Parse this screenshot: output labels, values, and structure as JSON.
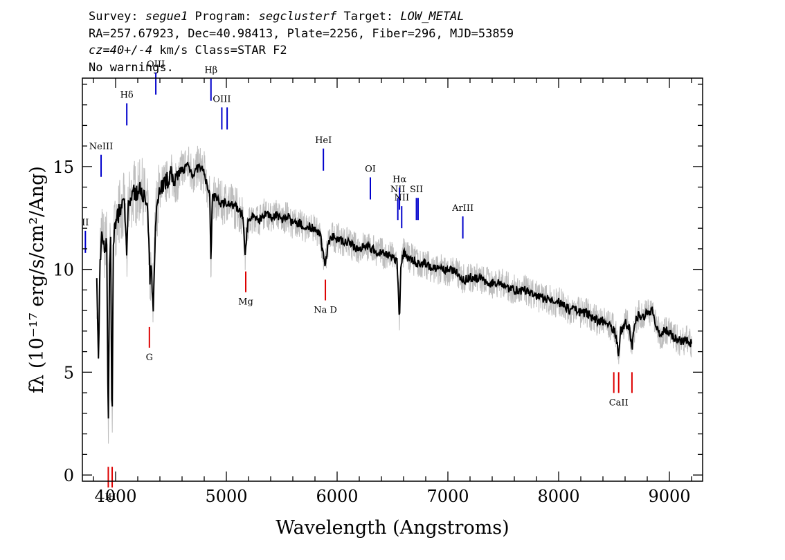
{
  "header": {
    "line1": {
      "survey_label": "Survey: ",
      "survey": "segue1",
      "program_label": " Program: ",
      "program": "segclusterf",
      "target_label": " Target: ",
      "target": "LOW_METAL"
    },
    "line2": "RA=257.67923, Dec=40.98413, Plate=2256, Fiber=296, MJD=53859",
    "line3": {
      "cz": "cz=40+/-4",
      "cz_unit": " km/s Class=STAR F2"
    },
    "line4": "No warnings."
  },
  "chart_data": {
    "type": "line",
    "xlabel": "Wavelength (Angstroms)",
    "ylabel": "fλ (10⁻¹⁷ erg/s/cm²/Ang)",
    "xlim": [
      3700,
      9300
    ],
    "ylim": [
      -0.3,
      19.3
    ],
    "x_ticks": [
      4000,
      5000,
      6000,
      7000,
      8000,
      9000
    ],
    "y_ticks": [
      0,
      5,
      10,
      15
    ],
    "colors": {
      "flux": "#000000",
      "noise": "#bdbdbd",
      "emission": "#0000cc",
      "absorption": "#dd0000"
    },
    "series": [
      {
        "points": [
          [
            3830,
            9.2
          ],
          [
            3845,
            5.5
          ],
          [
            3860,
            10.5
          ],
          [
            3880,
            11.8
          ],
          [
            3900,
            11.0
          ],
          [
            3920,
            11.5
          ],
          [
            3934,
            1.6
          ],
          [
            3945,
            10.2
          ],
          [
            3955,
            11.5
          ],
          [
            3968,
            1.8
          ],
          [
            3980,
            11.5
          ],
          [
            4000,
            12.2
          ],
          [
            4030,
            12.8
          ],
          [
            4060,
            13.0
          ],
          [
            4080,
            13.2
          ],
          [
            4102,
            10.5
          ],
          [
            4115,
            13.2
          ],
          [
            4140,
            13.5
          ],
          [
            4170,
            13.8
          ],
          [
            4200,
            13.6
          ],
          [
            4230,
            14.0
          ],
          [
            4260,
            13.5
          ],
          [
            4290,
            12.8
          ],
          [
            4310,
            9.5
          ],
          [
            4320,
            10.0
          ],
          [
            4340,
            8.2
          ],
          [
            4360,
            12.5
          ],
          [
            4400,
            14.0
          ],
          [
            4450,
            14.2
          ],
          [
            4500,
            14.6
          ],
          [
            4550,
            14.3
          ],
          [
            4600,
            14.8
          ],
          [
            4650,
            15.1
          ],
          [
            4700,
            14.6
          ],
          [
            4750,
            15.0
          ],
          [
            4800,
            14.7
          ],
          [
            4830,
            14.0
          ],
          [
            4850,
            13.5
          ],
          [
            4861,
            10.3
          ],
          [
            4872,
            13.5
          ],
          [
            4900,
            13.5
          ],
          [
            4950,
            13.2
          ],
          [
            5000,
            13.3
          ],
          [
            5050,
            13.1
          ],
          [
            5100,
            13.0
          ],
          [
            5150,
            12.6
          ],
          [
            5172,
            10.7
          ],
          [
            5185,
            12.0
          ],
          [
            5200,
            12.3
          ],
          [
            5250,
            12.6
          ],
          [
            5300,
            12.4
          ],
          [
            5350,
            12.8
          ],
          [
            5400,
            12.5
          ],
          [
            5450,
            12.7
          ],
          [
            5500,
            12.4
          ],
          [
            5550,
            12.6
          ],
          [
            5600,
            12.2
          ],
          [
            5650,
            12.3
          ],
          [
            5700,
            12.0
          ],
          [
            5750,
            12.1
          ],
          [
            5800,
            11.9
          ],
          [
            5850,
            11.6
          ],
          [
            5893,
            10.2
          ],
          [
            5920,
            11.3
          ],
          [
            5960,
            11.6
          ],
          [
            6000,
            11.5
          ],
          [
            6050,
            11.4
          ],
          [
            6100,
            11.3
          ],
          [
            6150,
            11.1
          ],
          [
            6200,
            11.0
          ],
          [
            6250,
            11.2
          ],
          [
            6300,
            11.0
          ],
          [
            6350,
            10.9
          ],
          [
            6400,
            10.8
          ],
          [
            6450,
            10.7
          ],
          [
            6500,
            10.6
          ],
          [
            6540,
            10.4
          ],
          [
            6563,
            7.5
          ],
          [
            6575,
            10.1
          ],
          [
            6600,
            10.8
          ],
          [
            6650,
            10.6
          ],
          [
            6700,
            10.4
          ],
          [
            6750,
            10.2
          ],
          [
            6800,
            10.3
          ],
          [
            6850,
            10.1
          ],
          [
            6900,
            10.0
          ],
          [
            6950,
            10.0
          ],
          [
            7000,
            9.9
          ],
          [
            7050,
            10.0
          ],
          [
            7100,
            9.7
          ],
          [
            7150,
            9.5
          ],
          [
            7200,
            9.6
          ],
          [
            7250,
            9.6
          ],
          [
            7300,
            9.5
          ],
          [
            7350,
            9.4
          ],
          [
            7400,
            9.3
          ],
          [
            7450,
            9.4
          ],
          [
            7500,
            9.3
          ],
          [
            7550,
            9.1
          ],
          [
            7600,
            9.0
          ],
          [
            7650,
            8.9
          ],
          [
            7700,
            9.0
          ],
          [
            7750,
            8.8
          ],
          [
            7800,
            8.7
          ],
          [
            7850,
            8.6
          ],
          [
            7900,
            8.6
          ],
          [
            7950,
            8.4
          ],
          [
            8000,
            8.4
          ],
          [
            8050,
            8.3
          ],
          [
            8100,
            8.0
          ],
          [
            8150,
            8.1
          ],
          [
            8200,
            7.9
          ],
          [
            8250,
            7.9
          ],
          [
            8300,
            7.7
          ],
          [
            8350,
            7.5
          ],
          [
            8400,
            7.5
          ],
          [
            8450,
            7.3
          ],
          [
            8500,
            7.1
          ],
          [
            8520,
            6.7
          ],
          [
            8542,
            5.8
          ],
          [
            8560,
            7.0
          ],
          [
            8600,
            7.4
          ],
          [
            8640,
            7.2
          ],
          [
            8662,
            6.1
          ],
          [
            8690,
            7.4
          ],
          [
            8720,
            7.8
          ],
          [
            8760,
            7.7
          ],
          [
            8800,
            7.9
          ],
          [
            8850,
            8.0
          ],
          [
            8880,
            7.2
          ],
          [
            8920,
            6.8
          ],
          [
            8960,
            7.1
          ],
          [
            9000,
            6.9
          ],
          [
            9050,
            6.7
          ],
          [
            9100,
            6.5
          ],
          [
            9150,
            6.6
          ],
          [
            9200,
            6.4
          ]
        ]
      }
    ],
    "emission_lines": [
      {
        "name": "NeII",
        "wave": 3727,
        "label": "II",
        "y": 10.8
      },
      {
        "name": "NeIII",
        "wave": 3869,
        "label": "NeIII",
        "y": 14.5
      },
      {
        "name": "Hdelta",
        "wave": 4101,
        "label": "Hδ",
        "y": 17.0
      },
      {
        "name": "OIII_4363",
        "wave": 4363,
        "label": "OIII",
        "y": 18.5
      },
      {
        "name": "Hbeta",
        "wave": 4861,
        "label": "Hβ",
        "y": 18.2
      },
      {
        "name": "OIII_4959",
        "wave": 4959,
        "label": "OIII",
        "y": 16.8
      },
      {
        "name": "OIII_5007",
        "wave": 5007,
        "label": "",
        "y": 16.8
      },
      {
        "name": "HeI",
        "wave": 5876,
        "label": "HeI",
        "y": 14.8
      },
      {
        "name": "OI",
        "wave": 6300,
        "label": "OI",
        "y": 13.4
      },
      {
        "name": "NII_6548",
        "wave": 6548,
        "label": "NII",
        "y": 12.4
      },
      {
        "name": "Halpha",
        "wave": 6563,
        "label": "Hα",
        "y": 12.9
      },
      {
        "name": "NII_6583",
        "wave": 6583,
        "label": "NII",
        "y": 12.0
      },
      {
        "name": "SII_6716",
        "wave": 6716,
        "label": "SII",
        "y": 12.4
      },
      {
        "name": "SII_6731",
        "wave": 6731,
        "label": "",
        "y": 12.4
      },
      {
        "name": "ArIII",
        "wave": 7135,
        "label": "ArIII",
        "y": 11.5
      }
    ],
    "absorption_lines": [
      {
        "name": "K",
        "wave": 3934,
        "label": "K",
        "y": 0.4
      },
      {
        "name": "H",
        "wave": 3969,
        "label": "H",
        "y": 0.4
      },
      {
        "name": "G",
        "wave": 4305,
        "label": "G",
        "y": 7.2
      },
      {
        "name": "Mg",
        "wave": 5175,
        "label": "Mg",
        "y": 9.9
      },
      {
        "name": "NaD",
        "wave": 5894,
        "label": "Na D",
        "y": 9.5
      },
      {
        "name": "CaII_8498",
        "wave": 8498,
        "label": "",
        "y": 5.0
      },
      {
        "name": "CaII_8542",
        "wave": 8542,
        "label": "CaII",
        "y": 5.0
      },
      {
        "name": "CaII_8662",
        "wave": 8662,
        "label": "",
        "y": 5.0
      }
    ]
  }
}
